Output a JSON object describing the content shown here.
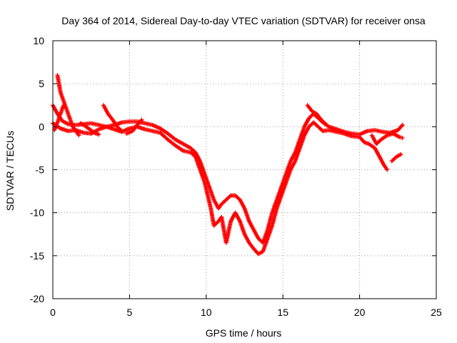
{
  "chart_data": {
    "type": "scatter",
    "title": "Day 364 of 2014, Sidereal Day-to-day VTEC variation (SDTVAR) for receiver onsa",
    "xlabel": "GPS time / hours",
    "ylabel": "SDTVAR / TECUs",
    "xlim": [
      0,
      25
    ],
    "ylim": [
      -20,
      10
    ],
    "xticks": [
      0,
      5,
      10,
      15,
      20,
      25
    ],
    "yticks": [
      10,
      5,
      0,
      -5,
      -10,
      -15,
      -20
    ],
    "grid": true,
    "marker": "+",
    "series": [
      {
        "name": "SDTVAR",
        "color": "#ff0000",
        "tracks": [
          [
            [
              0,
              2.5
            ],
            [
              0.3,
              1.5
            ],
            [
              0.6,
              0.7
            ],
            [
              1.0,
              0.3
            ],
            [
              1.5,
              0.2
            ],
            [
              2.0,
              0.3
            ],
            [
              2.5,
              0.4
            ],
            [
              3.0,
              0.2
            ],
            [
              3.5,
              0.0
            ],
            [
              4.0,
              0.2
            ],
            [
              4.5,
              0.5
            ],
            [
              5.0,
              0.6
            ],
            [
              5.5,
              0.6
            ],
            [
              6.0,
              0.4
            ],
            [
              6.5,
              0.2
            ],
            [
              7.0,
              -0.2
            ],
            [
              7.5,
              -0.8
            ],
            [
              8.0,
              -1.5
            ],
            [
              8.5,
              -2.0
            ],
            [
              9.0,
              -2.5
            ],
            [
              9.3,
              -3.0
            ],
            [
              9.6,
              -4.0
            ],
            [
              9.9,
              -5.5
            ],
            [
              10.1,
              -6.5
            ],
            [
              10.3,
              -7.5
            ],
            [
              10.5,
              -8.5
            ],
            [
              10.8,
              -9.5
            ],
            [
              11.0,
              -9.0
            ],
            [
              11.3,
              -8.5
            ],
            [
              11.6,
              -8.0
            ],
            [
              11.9,
              -8.0
            ],
            [
              12.2,
              -8.5
            ],
            [
              12.5,
              -9.5
            ],
            [
              12.8,
              -11.0
            ],
            [
              13.1,
              -12.0
            ],
            [
              13.4,
              -13.0
            ],
            [
              13.7,
              -13.5
            ],
            [
              14.0,
              -12.0
            ],
            [
              14.3,
              -10.0
            ],
            [
              14.6,
              -8.5
            ],
            [
              14.9,
              -7.0
            ],
            [
              15.2,
              -5.5
            ],
            [
              15.5,
              -4.0
            ],
            [
              15.8,
              -3.0
            ],
            [
              16.1,
              -1.5
            ],
            [
              16.4,
              0.0
            ],
            [
              16.7,
              1.0
            ],
            [
              17.0,
              1.5
            ],
            [
              17.3,
              1.0
            ],
            [
              17.6,
              0.5
            ],
            [
              18.0,
              0.0
            ],
            [
              18.5,
              -0.3
            ],
            [
              19.0,
              -0.6
            ],
            [
              19.5,
              -0.8
            ],
            [
              20.0,
              -0.9
            ],
            [
              20.5,
              -0.5
            ],
            [
              21.0,
              -0.4
            ],
            [
              21.5,
              -0.6
            ],
            [
              22.0,
              -0.7
            ],
            [
              22.5,
              -0.4
            ],
            [
              22.8,
              0.2
            ]
          ],
          [
            [
              0,
              0.4
            ],
            [
              0.5,
              -0.2
            ],
            [
              1.0,
              -0.5
            ],
            [
              1.5,
              -0.4
            ],
            [
              2.0,
              -0.7
            ],
            [
              2.5,
              -0.8
            ],
            [
              3.0,
              -0.3
            ],
            [
              3.5,
              0.0
            ],
            [
              4.0,
              -0.3
            ],
            [
              4.5,
              -0.6
            ],
            [
              5.0,
              -0.2
            ],
            [
              5.5,
              0.0
            ],
            [
              6.0,
              -0.3
            ],
            [
              6.5,
              -0.5
            ],
            [
              7.0,
              -0.7
            ],
            [
              7.5,
              -1.5
            ],
            [
              8.0,
              -2.2
            ],
            [
              8.5,
              -2.8
            ],
            [
              9.0,
              -3.0
            ],
            [
              9.3,
              -3.5
            ],
            [
              9.6,
              -5.0
            ],
            [
              9.9,
              -6.5
            ],
            [
              10.1,
              -8.0
            ],
            [
              10.3,
              -9.5
            ],
            [
              10.5,
              -11.5
            ],
            [
              10.8,
              -11.0
            ],
            [
              11.0,
              -10.5
            ],
            [
              11.3,
              -13.5
            ],
            [
              11.6,
              -11.0
            ],
            [
              11.9,
              -10.0
            ],
            [
              12.2,
              -11.0
            ],
            [
              12.5,
              -12.5
            ],
            [
              12.8,
              -13.5
            ],
            [
              13.1,
              -14.2
            ],
            [
              13.4,
              -14.8
            ],
            [
              13.7,
              -14.5
            ],
            [
              14.0,
              -13.0
            ],
            [
              14.3,
              -11.5
            ],
            [
              14.6,
              -9.5
            ],
            [
              14.9,
              -8.0
            ],
            [
              15.2,
              -6.5
            ],
            [
              15.5,
              -5.0
            ],
            [
              15.8,
              -4.0
            ],
            [
              16.1,
              -2.5
            ],
            [
              16.4,
              -1.0
            ],
            [
              16.7,
              0.0
            ],
            [
              17.0,
              0.5
            ],
            [
              17.3,
              0.0
            ],
            [
              17.6,
              -0.5
            ],
            [
              18.0,
              -0.4
            ],
            [
              18.5,
              -0.6
            ],
            [
              19.0,
              -0.8
            ],
            [
              19.5,
              -1.1
            ],
            [
              20.0,
              -1.2
            ],
            [
              20.3,
              -1.8
            ],
            [
              20.6,
              -2.0
            ],
            [
              21.0,
              -2.5
            ],
            [
              21.3,
              -3.5
            ],
            [
              21.6,
              -4.5
            ],
            [
              21.8,
              -5.0
            ]
          ],
          [
            [
              0.3,
              6.0
            ],
            [
              0.5,
              4.0
            ],
            [
              0.7,
              3.0
            ],
            [
              0.9,
              2.0
            ],
            [
              1.1,
              1.0
            ],
            [
              1.3,
              0.0
            ],
            [
              1.5,
              -0.5
            ],
            [
              1.7,
              -1.0
            ]
          ],
          [
            [
              0.1,
              -0.4
            ],
            [
              0.3,
              0.5
            ],
            [
              0.5,
              1.5
            ],
            [
              0.7,
              2.5
            ]
          ],
          [
            [
              3.3,
              2.5
            ],
            [
              3.6,
              1.5
            ],
            [
              3.9,
              0.8
            ],
            [
              4.2,
              0.0
            ],
            [
              4.5,
              -0.5
            ]
          ],
          [
            [
              1.8,
              0.4
            ],
            [
              2.1,
              0.1
            ],
            [
              2.4,
              -0.3
            ],
            [
              2.7,
              -0.7
            ],
            [
              3.0,
              -0.9
            ]
          ],
          [
            [
              4.8,
              -0.8
            ],
            [
              5.2,
              -0.5
            ],
            [
              5.5,
              0.2
            ],
            [
              5.8,
              0.8
            ]
          ],
          [
            [
              16.6,
              2.5
            ],
            [
              16.9,
              1.8
            ],
            [
              17.2,
              1.5
            ],
            [
              17.5,
              0.8
            ],
            [
              17.8,
              0.3
            ]
          ],
          [
            [
              22.1,
              -4.0
            ],
            [
              22.4,
              -3.5
            ],
            [
              22.7,
              -3.2
            ]
          ],
          [
            [
              20.8,
              -1.0
            ],
            [
              21.1,
              -2.0
            ],
            [
              21.4,
              -1.5
            ],
            [
              21.8,
              -1.0
            ],
            [
              22.2,
              -0.8
            ],
            [
              22.6,
              -1.2
            ],
            [
              22.8,
              -1.3
            ]
          ]
        ]
      }
    ]
  }
}
